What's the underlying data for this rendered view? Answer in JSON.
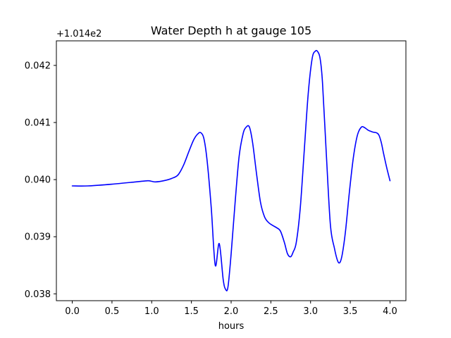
{
  "chart_data": {
    "type": "line",
    "title": "Water Depth h at gauge 105",
    "xlabel": "hours",
    "ylabel": "",
    "offset_label": "+1.014e2",
    "y_offset": 101.4,
    "xlim": [
      -0.2,
      4.2
    ],
    "ylim": [
      0.03788,
      0.04243
    ],
    "grid": false,
    "x_ticks": [
      {
        "value": 0.0,
        "label": "0.0"
      },
      {
        "value": 0.5,
        "label": "0.5"
      },
      {
        "value": 1.0,
        "label": "1.0"
      },
      {
        "value": 1.5,
        "label": "1.5"
      },
      {
        "value": 2.0,
        "label": "2.0"
      },
      {
        "value": 2.5,
        "label": "2.5"
      },
      {
        "value": 3.0,
        "label": "3.0"
      },
      {
        "value": 3.5,
        "label": "3.5"
      },
      {
        "value": 4.0,
        "label": "4.0"
      }
    ],
    "y_ticks": [
      {
        "value": 0.038,
        "label": "0.038"
      },
      {
        "value": 0.039,
        "label": "0.039"
      },
      {
        "value": 0.04,
        "label": "0.040"
      },
      {
        "value": 0.041,
        "label": "0.041"
      },
      {
        "value": 0.042,
        "label": "0.042"
      }
    ],
    "series": [
      {
        "color": "#0000ff",
        "x": [
          0.0,
          0.2,
          0.5,
          0.8,
          0.95,
          1.0,
          1.05,
          1.15,
          1.25,
          1.33,
          1.4,
          1.47,
          1.53,
          1.58,
          1.62,
          1.66,
          1.7,
          1.75,
          1.8,
          1.85,
          1.9,
          1.93,
          1.96,
          2.0,
          2.05,
          2.1,
          2.15,
          2.19,
          2.23,
          2.27,
          2.32,
          2.37,
          2.42,
          2.47,
          2.52,
          2.57,
          2.62,
          2.67,
          2.71,
          2.75,
          2.78,
          2.82,
          2.87,
          2.92,
          2.97,
          3.02,
          3.06,
          3.09,
          3.12,
          3.15,
          3.2,
          3.25,
          3.3,
          3.34,
          3.37,
          3.4,
          3.44,
          3.49,
          3.54,
          3.59,
          3.64,
          3.68,
          3.72,
          3.75,
          3.79,
          3.83,
          3.86,
          3.89,
          3.92,
          3.96,
          4.0
        ],
        "y": [
          0.03989,
          0.03989,
          0.03992,
          0.03996,
          0.03998,
          0.03997,
          0.03996,
          0.03998,
          0.04002,
          0.04008,
          0.04025,
          0.0405,
          0.0407,
          0.0408,
          0.04082,
          0.0407,
          0.0403,
          0.0395,
          0.0385,
          0.03888,
          0.03825,
          0.03808,
          0.03812,
          0.0387,
          0.0396,
          0.0404,
          0.0408,
          0.04092,
          0.04092,
          0.04065,
          0.0401,
          0.0396,
          0.03935,
          0.03925,
          0.0392,
          0.03916,
          0.0391,
          0.0389,
          0.0387,
          0.03865,
          0.03873,
          0.0389,
          0.0395,
          0.0405,
          0.0415,
          0.04212,
          0.04225,
          0.04224,
          0.04212,
          0.0417,
          0.0404,
          0.0392,
          0.0388,
          0.03858,
          0.03855,
          0.0387,
          0.0391,
          0.0398,
          0.0404,
          0.04078,
          0.04092,
          0.04091,
          0.04087,
          0.04085,
          0.04083,
          0.04082,
          0.04078,
          0.04065,
          0.04045,
          0.0402,
          0.03998
        ]
      }
    ]
  }
}
